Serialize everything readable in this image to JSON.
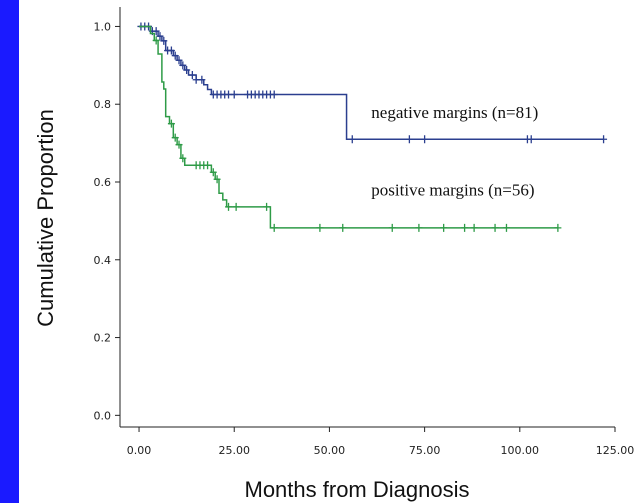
{
  "chart_data": {
    "type": "line",
    "subtype": "kaplan-meier",
    "title": "",
    "xlabel": "Months from Diagnosis",
    "ylabel": "Cumulative Proportion",
    "xlim": [
      -5,
      125
    ],
    "ylim": [
      -0.03,
      1.05
    ],
    "xticks": [
      0,
      25,
      50,
      75,
      100,
      125
    ],
    "xtick_labels": [
      "0.00",
      "25.00",
      "50.00",
      "75.00",
      "100.00",
      "125.00"
    ],
    "yticks": [
      0.0,
      0.2,
      0.4,
      0.6,
      0.8,
      1.0
    ],
    "ytick_labels": [
      "0.0",
      "0.2",
      "0.4",
      "0.6",
      "0.8",
      "1.0"
    ],
    "grid": false,
    "series": [
      {
        "name": "negative margins (n=81)",
        "color": "#2b3f8f",
        "steps": [
          [
            0,
            1.0
          ],
          [
            1.5,
            1.0
          ],
          [
            3,
            0.988
          ],
          [
            5,
            0.975
          ],
          [
            6,
            0.963
          ],
          [
            7,
            0.938
          ],
          [
            9,
            0.925
          ],
          [
            10,
            0.913
          ],
          [
            11,
            0.9
          ],
          [
            12,
            0.888
          ],
          [
            13,
            0.875
          ],
          [
            15,
            0.863
          ],
          [
            17,
            0.85
          ],
          [
            18,
            0.838
          ],
          [
            19,
            0.825
          ],
          [
            52,
            0.825
          ],
          [
            54,
            0.825
          ],
          [
            54.5,
            0.71
          ],
          [
            122,
            0.71
          ]
        ],
        "censor_x": [
          0.5,
          1.5,
          2.5,
          3.5,
          4.5,
          5.5,
          6.5,
          7.5,
          8.5,
          9.5,
          10.5,
          11.5,
          12.5,
          14,
          15,
          16.5,
          19.5,
          20.5,
          21.5,
          22.5,
          23.5,
          25,
          28.5,
          29.5,
          30.5,
          31.5,
          32.5,
          33.5,
          34.5,
          35.5,
          56,
          71,
          75,
          102,
          103,
          122
        ]
      },
      {
        "name": "positive margins (n=56)",
        "color": "#2e9b47",
        "steps": [
          [
            0,
            1.0
          ],
          [
            2,
            1.0
          ],
          [
            3,
            0.982
          ],
          [
            4,
            0.964
          ],
          [
            5,
            0.929
          ],
          [
            6,
            0.857
          ],
          [
            6.5,
            0.839
          ],
          [
            7,
            0.768
          ],
          [
            8,
            0.75
          ],
          [
            9,
            0.714
          ],
          [
            10,
            0.696
          ],
          [
            11,
            0.661
          ],
          [
            12,
            0.643
          ],
          [
            19,
            0.625
          ],
          [
            20,
            0.607
          ],
          [
            21,
            0.571
          ],
          [
            22,
            0.554
          ],
          [
            23,
            0.536
          ],
          [
            34,
            0.536
          ],
          [
            34.5,
            0.482
          ],
          [
            110,
            0.482
          ]
        ],
        "censor_x": [
          4.5,
          8.5,
          9.5,
          10.5,
          11.5,
          15,
          16,
          17,
          18,
          19.5,
          20.5,
          23.5,
          25.5,
          33.5,
          35.5,
          47.5,
          53.5,
          66.5,
          73.5,
          80,
          85.5,
          88,
          93.5,
          96.5,
          110
        ]
      }
    ],
    "annotations": [
      {
        "text": "negative margins (n=81)",
        "x": 61,
        "y": 0.765
      },
      {
        "text": "positive margins (n=56)",
        "x": 61,
        "y": 0.565
      }
    ]
  }
}
